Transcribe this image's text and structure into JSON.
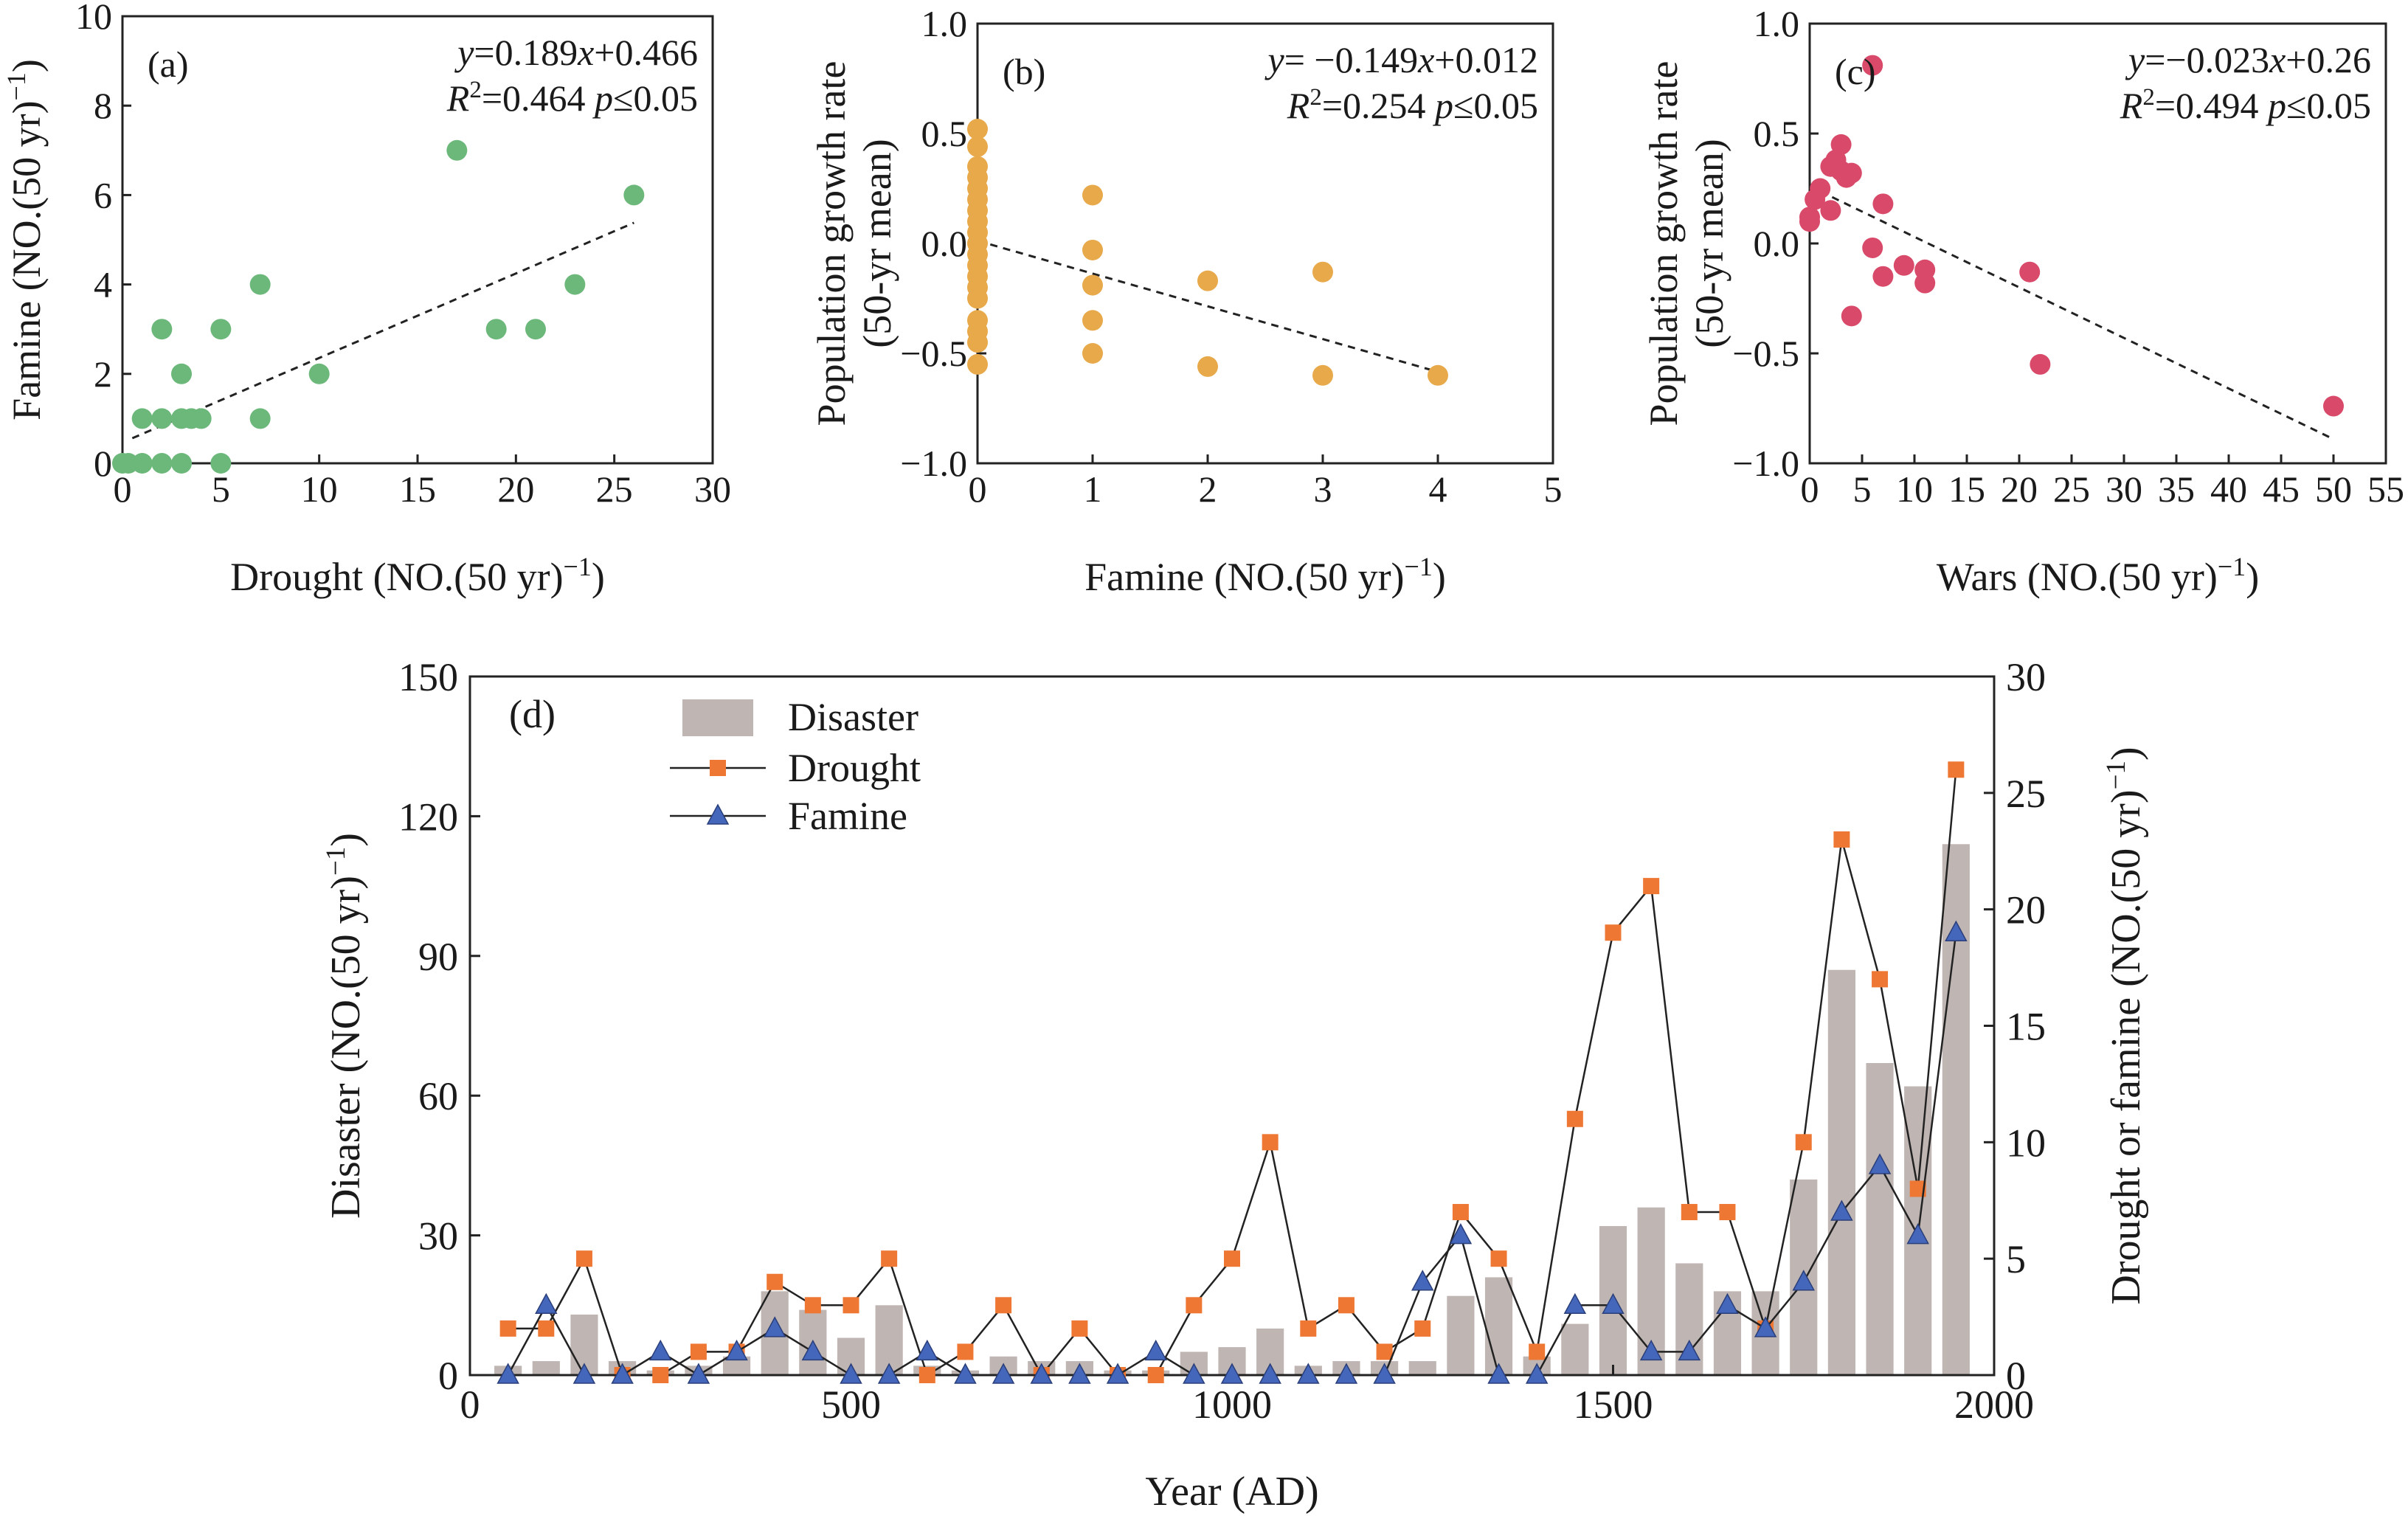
{
  "chart_data": [
    {
      "panel": "a",
      "type": "scatter",
      "panel_label": "(a)",
      "equation": {
        "y": "y",
        "rhs": "=0.189",
        "x": "x",
        "tail": "+0.466"
      },
      "stats": {
        "r": "R",
        "sup": "2",
        "mid": "=0.464 ",
        "p": "p",
        "tail": "≤0.05"
      },
      "xlabel": {
        "main": "Drought (NO.(50 yr)",
        "sup": "−1",
        "close": ")"
      },
      "ylabel": {
        "main": "Famine (NO.(50 yr)",
        "sup": "−1",
        "close": ")"
      },
      "xlim": [
        0,
        30
      ],
      "ylim": [
        0,
        10
      ],
      "xticks": [
        "0",
        "5",
        "10",
        "15",
        "20",
        "25",
        "30"
      ],
      "yticks": [
        "0",
        "2",
        "4",
        "6",
        "8",
        "10"
      ],
      "fit": {
        "slope": 0.189,
        "intercept": 0.466,
        "x0": 0.5,
        "x1": 26
      },
      "color": "#6cb87a",
      "points": [
        [
          0,
          0
        ],
        [
          0.3,
          0
        ],
        [
          1,
          1
        ],
        [
          1,
          0
        ],
        [
          2,
          0
        ],
        [
          2,
          1
        ],
        [
          2,
          3
        ],
        [
          3,
          1
        ],
        [
          3,
          2
        ],
        [
          3,
          0
        ],
        [
          3.5,
          1
        ],
        [
          4,
          1
        ],
        [
          5,
          3
        ],
        [
          5,
          0
        ],
        [
          7,
          4
        ],
        [
          7,
          1
        ],
        [
          10,
          2
        ],
        [
          17,
          7
        ],
        [
          19,
          3
        ],
        [
          21,
          3
        ],
        [
          23,
          4
        ],
        [
          26,
          6
        ]
      ]
    },
    {
      "panel": "b",
      "type": "scatter",
      "panel_label": "(b)",
      "equation": {
        "y": "y",
        "rhs": "= −0.149",
        "x": "x",
        "tail": "+0.012"
      },
      "stats": {
        "r": "R",
        "sup": "2",
        "mid": "=0.254 ",
        "p": "p",
        "tail": "≤0.05"
      },
      "xlabel": {
        "main": "Famine (NO.(50 yr)",
        "sup": "−1",
        "close": ")"
      },
      "ylabel": {
        "line1": "Population growth rate",
        "line2": "(50-yr mean)"
      },
      "xlim": [
        0,
        5
      ],
      "ylim": [
        -1.0,
        1.0
      ],
      "xticks": [
        "0",
        "1",
        "2",
        "3",
        "4",
        "5"
      ],
      "yticks": [
        "−1.0",
        "−0.5",
        "0.0",
        "0.5",
        "1.0"
      ],
      "fit": {
        "slope": -0.149,
        "intercept": 0.012,
        "x0": 0,
        "x1": 4
      },
      "color": "#e8a94a",
      "points": [
        [
          0,
          0.52
        ],
        [
          0,
          0.44
        ],
        [
          0,
          0.35
        ],
        [
          0,
          0.3
        ],
        [
          0,
          0.25
        ],
        [
          0,
          0.2
        ],
        [
          0,
          0.15
        ],
        [
          0,
          0.1
        ],
        [
          0,
          0.05
        ],
        [
          0,
          0.0
        ],
        [
          0,
          -0.05
        ],
        [
          0,
          -0.1
        ],
        [
          0,
          -0.15
        ],
        [
          0,
          -0.2
        ],
        [
          0,
          -0.25
        ],
        [
          0,
          -0.35
        ],
        [
          0,
          -0.4
        ],
        [
          0,
          -0.45
        ],
        [
          0,
          -0.55
        ],
        [
          1,
          0.22
        ],
        [
          1,
          -0.03
        ],
        [
          1,
          -0.19
        ],
        [
          1,
          -0.35
        ],
        [
          1,
          -0.5
        ],
        [
          2,
          -0.17
        ],
        [
          2,
          -0.56
        ],
        [
          3,
          -0.13
        ],
        [
          3,
          -0.6
        ],
        [
          4,
          -0.6
        ]
      ]
    },
    {
      "panel": "c",
      "type": "scatter",
      "panel_label": "(c)",
      "equation": {
        "y": "y",
        "rhs": "=−0.023",
        "x": "x",
        "tail": "+0.26"
      },
      "stats": {
        "r": "R",
        "sup": "2",
        "mid": "=0.494 ",
        "p": "p",
        "tail": "≤0.05"
      },
      "xlabel": {
        "main": "Wars (NO.(50 yr)",
        "sup": "−1",
        "close": ")"
      },
      "ylabel": {
        "line1": "Population growth rate",
        "line2": "(50-yr mean)"
      },
      "xlim": [
        0,
        55
      ],
      "ylim": [
        -1.0,
        1.0
      ],
      "xticks": [
        "0",
        "5",
        "10",
        "15",
        "20",
        "25",
        "30",
        "35",
        "40",
        "45",
        "50",
        "55"
      ],
      "yticks": [
        "−1.0",
        "−0.5",
        "0.0",
        "0.5",
        "1.0"
      ],
      "fit": {
        "slope": -0.023,
        "intercept": 0.26,
        "x0": 1,
        "x1": 50
      },
      "color": "#d94a6a",
      "points": [
        [
          0,
          0.12
        ],
        [
          0,
          0.1
        ],
        [
          0.5,
          0.2
        ],
        [
          1,
          0.25
        ],
        [
          2,
          0.35
        ],
        [
          2,
          0.15
        ],
        [
          2.5,
          0.38
        ],
        [
          3,
          0.45
        ],
        [
          3,
          0.33
        ],
        [
          3.5,
          0.3
        ],
        [
          4,
          0.32
        ],
        [
          4,
          -0.33
        ],
        [
          6,
          0.81
        ],
        [
          6,
          -0.02
        ],
        [
          7,
          0.18
        ],
        [
          7,
          -0.15
        ],
        [
          9,
          -0.1
        ],
        [
          11,
          -0.18
        ],
        [
          11,
          -0.12
        ],
        [
          21,
          -0.13
        ],
        [
          22,
          -0.55
        ],
        [
          50,
          -0.74
        ]
      ]
    },
    {
      "panel": "d",
      "type": "bar+line",
      "panel_label": "(d)",
      "xlabel": "Year (AD)",
      "ylabel_left": {
        "main": "Disaster (NO.(50 yr)",
        "sup": "−1",
        "close": ")"
      },
      "ylabel_right": {
        "main": "Drought or famine (NO.(50 yr)",
        "sup": "−1",
        "close": ")"
      },
      "xlim": [
        0,
        2000
      ],
      "ylim_left": [
        0,
        150
      ],
      "ylim_right": [
        0,
        30
      ],
      "xticks": [
        "0",
        "500",
        "1000",
        "1500",
        "2000"
      ],
      "yticks_left": [
        "0",
        "30",
        "60",
        "90",
        "120",
        "150"
      ],
      "yticks_right": [
        "0",
        "5",
        "10",
        "15",
        "20",
        "25",
        "30"
      ],
      "years": [
        50,
        100,
        150,
        200,
        250,
        300,
        350,
        400,
        450,
        500,
        550,
        600,
        650,
        700,
        750,
        800,
        850,
        900,
        950,
        1000,
        1050,
        1100,
        1150,
        1200,
        1250,
        1300,
        1350,
        1400,
        1450,
        1500,
        1550,
        1600,
        1650,
        1700,
        1750,
        1800,
        1850,
        1900,
        1950
      ],
      "series": [
        {
          "name": "Disaster",
          "kind": "bar",
          "axis": "left",
          "color": "#bfb6b3",
          "values": [
            2,
            3,
            13,
            3,
            1,
            2,
            4,
            18,
            14,
            8,
            15,
            2,
            1,
            4,
            3,
            3,
            1,
            1,
            5,
            6,
            10,
            2,
            3,
            3,
            3,
            17,
            21,
            4,
            11,
            32,
            36,
            24,
            18,
            18,
            42,
            87,
            67,
            62,
            114
          ]
        },
        {
          "name": "Drought",
          "kind": "line",
          "marker": "square",
          "axis": "right",
          "color": "#ee7733",
          "values": [
            2,
            2,
            5,
            0,
            0,
            1,
            1,
            4,
            3,
            3,
            5,
            0,
            1,
            3,
            0,
            2,
            0,
            0,
            3,
            5,
            10,
            2,
            3,
            1,
            2,
            7,
            5,
            1,
            11,
            19,
            21,
            7,
            7,
            2,
            10,
            23,
            17,
            8,
            26
          ]
        },
        {
          "name": "Famine",
          "kind": "line",
          "marker": "triangle",
          "axis": "right",
          "color": "#4466bb",
          "values": [
            0,
            3,
            0,
            0,
            1,
            0,
            1,
            2,
            1,
            0,
            0,
            1,
            0,
            0,
            0,
            0,
            0,
            1,
            0,
            0,
            0,
            0,
            0,
            0,
            4,
            6,
            0,
            0,
            3,
            3,
            1,
            1,
            3,
            2,
            4,
            7,
            9,
            6,
            19
          ]
        }
      ]
    }
  ]
}
